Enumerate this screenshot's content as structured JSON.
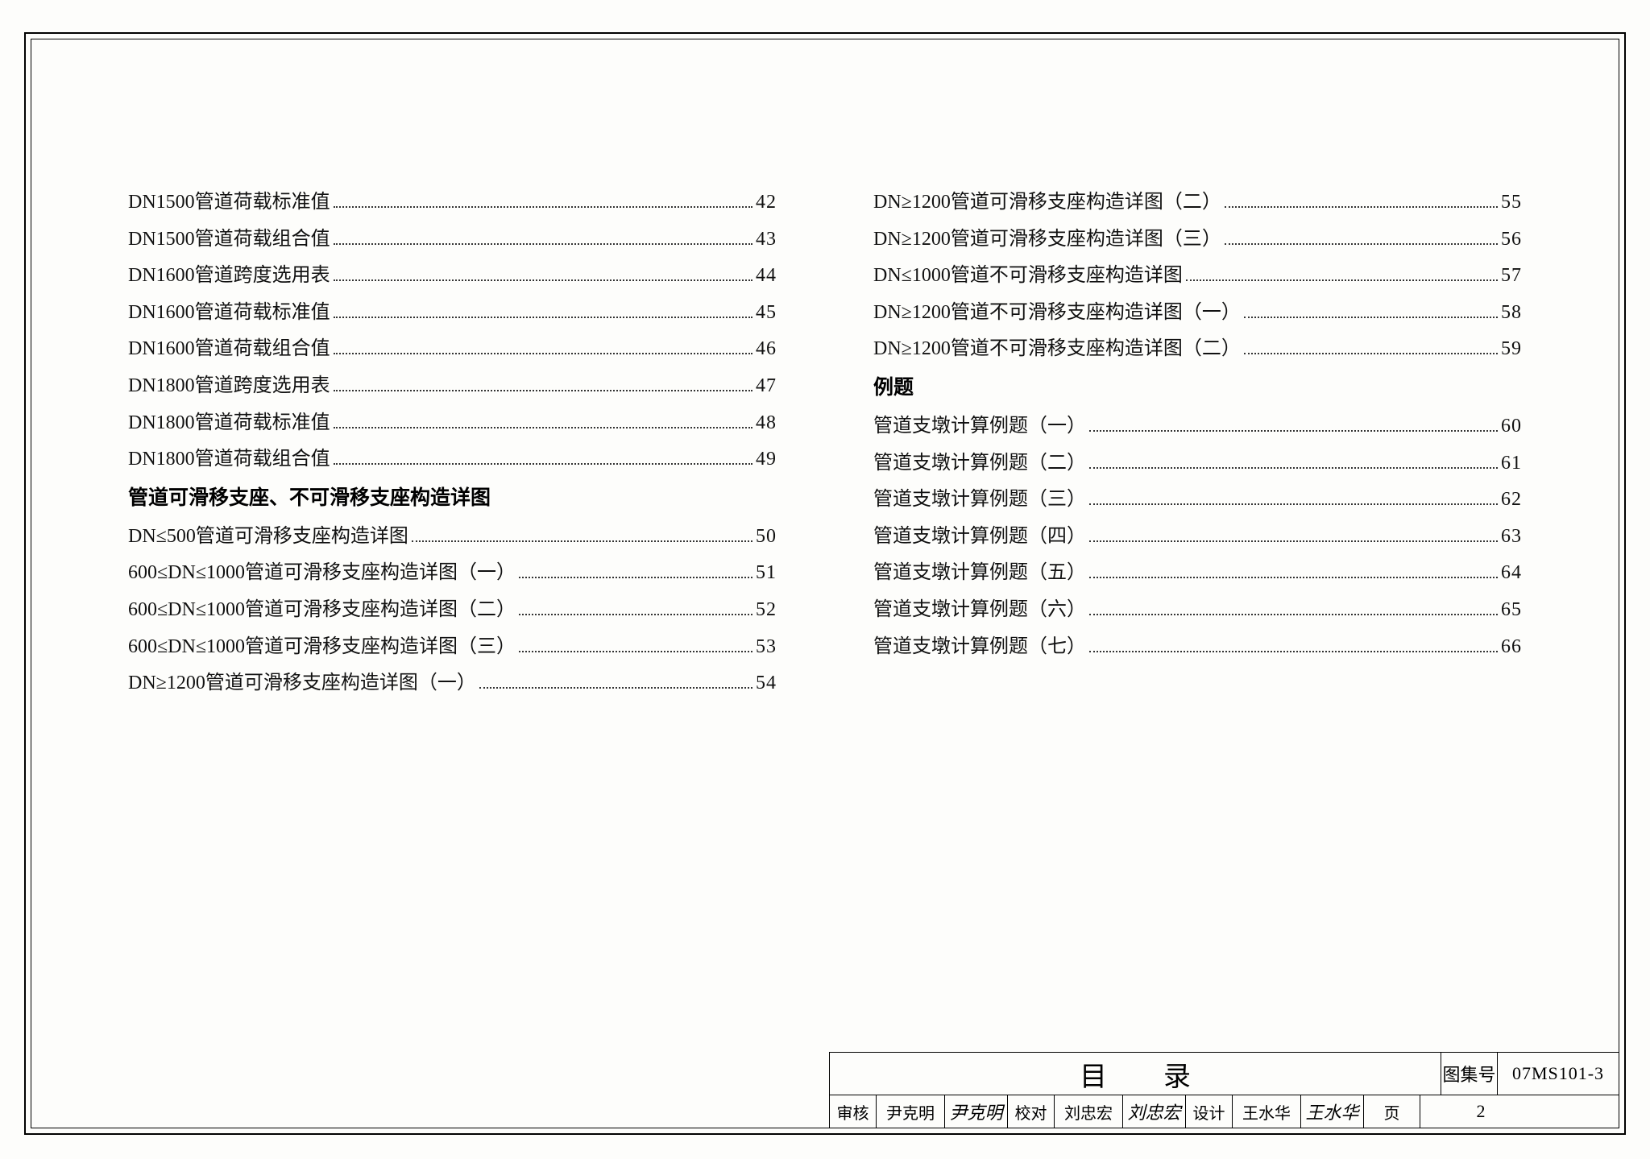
{
  "left_column": [
    {
      "type": "entry",
      "label": "DN1500管道荷载标准值",
      "page": "42"
    },
    {
      "type": "entry",
      "label": "DN1500管道荷载组合值",
      "page": "43"
    },
    {
      "type": "entry",
      "label": "DN1600管道跨度选用表",
      "page": "44"
    },
    {
      "type": "entry",
      "label": "DN1600管道荷载标准值",
      "page": "45"
    },
    {
      "type": "entry",
      "label": "DN1600管道荷载组合值",
      "page": "46"
    },
    {
      "type": "entry",
      "label": "DN1800管道跨度选用表",
      "page": "47"
    },
    {
      "type": "entry",
      "label": "DN1800管道荷载标准值",
      "page": "48"
    },
    {
      "type": "entry",
      "label": "DN1800管道荷载组合值",
      "page": "49"
    },
    {
      "type": "heading",
      "label": "管道可滑移支座、不可滑移支座构造详图"
    },
    {
      "type": "entry",
      "label": "DN≤500管道可滑移支座构造详图",
      "page": "50"
    },
    {
      "type": "entry",
      "label": "600≤DN≤1000管道可滑移支座构造详图（一）",
      "page": "51"
    },
    {
      "type": "entry",
      "label": "600≤DN≤1000管道可滑移支座构造详图（二）",
      "page": "52"
    },
    {
      "type": "entry",
      "label": "600≤DN≤1000管道可滑移支座构造详图（三）",
      "page": "53"
    },
    {
      "type": "entry",
      "label": "DN≥1200管道可滑移支座构造详图（一）",
      "page": "54"
    }
  ],
  "right_column": [
    {
      "type": "entry",
      "label": "DN≥1200管道可滑移支座构造详图（二）",
      "page": "55"
    },
    {
      "type": "entry",
      "label": "DN≥1200管道可滑移支座构造详图（三）",
      "page": "56"
    },
    {
      "type": "entry",
      "label": "DN≤1000管道不可滑移支座构造详图",
      "page": "57"
    },
    {
      "type": "entry",
      "label": "DN≥1200管道不可滑移支座构造详图（一）",
      "page": "58"
    },
    {
      "type": "entry",
      "label": "DN≥1200管道不可滑移支座构造详图（二）",
      "page": "59"
    },
    {
      "type": "heading",
      "label": "例题"
    },
    {
      "type": "entry",
      "label": "管道支墩计算例题（一）",
      "page": "60"
    },
    {
      "type": "entry",
      "label": "管道支墩计算例题（二）",
      "page": "61"
    },
    {
      "type": "entry",
      "label": "管道支墩计算例题（三）",
      "page": "62"
    },
    {
      "type": "entry",
      "label": "管道支墩计算例题（四）",
      "page": "63"
    },
    {
      "type": "entry",
      "label": "管道支墩计算例题（五）",
      "page": "64"
    },
    {
      "type": "entry",
      "label": "管道支墩计算例题（六）",
      "page": "65"
    },
    {
      "type": "entry",
      "label": "管道支墩计算例题（七）",
      "page": "66"
    }
  ],
  "title_block": {
    "title": "目　录",
    "drawing_no_label": "图集号",
    "drawing_no": "07MS101-3",
    "review_label": "审核",
    "review_name": "尹克明",
    "review_sign": "尹克明",
    "check_label": "校对",
    "check_name": "刘忠宏",
    "check_sign": "刘忠宏",
    "design_label": "设计",
    "design_name": "王水华",
    "design_sign": "王水华",
    "page_label": "页",
    "page_no": "2"
  }
}
